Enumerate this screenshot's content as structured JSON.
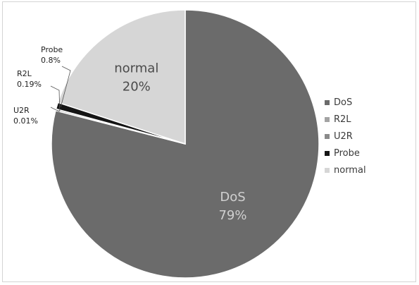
{
  "chart_data": {
    "type": "pie",
    "title": "",
    "categories": [
      "DoS",
      "R2L",
      "U2R",
      "Probe",
      "normal"
    ],
    "values": [
      79,
      0.19,
      0.01,
      0.8,
      20
    ],
    "value_labels": [
      "79%",
      "0.19%",
      "0.01%",
      "0.8%",
      "20%"
    ],
    "colors": [
      "#6b6b6b",
      "#a3a3a3",
      "#8a8a8a",
      "#151515",
      "#d6d6d6"
    ],
    "label_colors": [
      "#d0d0d0",
      "#222222",
      "#222222",
      "#222222",
      "#4a4a4a"
    ],
    "legend_position": "right",
    "start_angle": "12 o'clock",
    "direction": "clockwise"
  }
}
